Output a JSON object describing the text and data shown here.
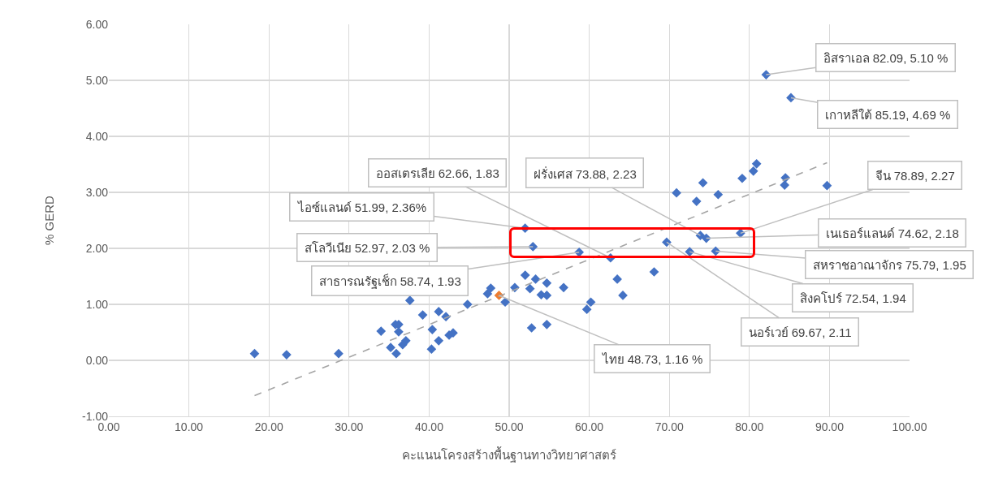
{
  "chart_data": {
    "type": "scatter",
    "xlabel": "คะแนนโครงสร้างพื้นฐานทางวิทยาศาสตร์",
    "ylabel": "% GERD",
    "xlim": [
      0,
      100
    ],
    "ylim": [
      -1,
      6
    ],
    "xticks": [
      {
        "value": 0,
        "label": "0.00"
      },
      {
        "value": 10,
        "label": "10.00"
      },
      {
        "value": 20,
        "label": "20.00"
      },
      {
        "value": 30,
        "label": "30.00"
      },
      {
        "value": 40,
        "label": "40.00"
      },
      {
        "value": 50,
        "label": "50.00"
      },
      {
        "value": 60,
        "label": "60.00"
      },
      {
        "value": 70,
        "label": "70.00"
      },
      {
        "value": 80,
        "label": "80.00"
      },
      {
        "value": 90,
        "label": "90.00"
      },
      {
        "value": 100,
        "label": "100.00"
      }
    ],
    "yticks": [
      {
        "value": -1,
        "label": "-1.00"
      },
      {
        "value": 0,
        "label": "0.00"
      },
      {
        "value": 1,
        "label": "1.00"
      },
      {
        "value": 2,
        "label": "2.00"
      },
      {
        "value": 3,
        "label": "3.00"
      },
      {
        "value": 4,
        "label": "4.00"
      },
      {
        "value": 5,
        "label": "5.00"
      },
      {
        "value": 6,
        "label": "6.00"
      }
    ],
    "grid": true,
    "marker": "diamond",
    "series": [
      {
        "color": "#4472c4",
        "x": [
          18.2,
          22.2,
          28.7,
          34.0,
          35.2,
          35.8,
          35.9,
          36.2,
          36.2,
          36.7,
          37.1,
          37.6,
          39.2,
          40.3,
          40.4,
          41.2,
          41.2,
          42.1,
          42.5,
          43.0,
          44.8,
          47.3,
          47.7,
          49.5,
          50.7,
          51.99,
          52.0,
          52.6,
          52.8,
          52.97,
          53.3,
          54.0,
          54.7,
          54.7,
          54.7,
          56.8,
          58.74,
          59.7,
          60.2,
          62.66,
          63.5,
          64.2,
          68.1,
          69.67,
          70.9,
          72.54,
          73.4,
          73.88,
          74.2,
          74.62,
          75.79,
          76.1,
          78.89,
          79.1,
          80.5,
          80.9,
          82.09,
          84.4,
          84.5,
          85.19,
          89.7
        ],
        "values": [
          0.12,
          0.1,
          0.12,
          0.52,
          0.23,
          0.64,
          0.12,
          0.64,
          0.51,
          0.28,
          0.35,
          1.07,
          0.81,
          0.2,
          0.55,
          0.87,
          0.35,
          0.78,
          0.45,
          0.49,
          1.0,
          1.19,
          1.29,
          1.04,
          1.3,
          2.36,
          1.52,
          1.28,
          0.58,
          2.03,
          1.45,
          1.17,
          1.38,
          0.64,
          1.16,
          1.3,
          1.93,
          0.91,
          1.04,
          1.83,
          1.45,
          1.16,
          1.58,
          2.11,
          2.99,
          1.94,
          2.84,
          2.23,
          3.17,
          2.18,
          1.95,
          2.96,
          2.27,
          3.25,
          3.38,
          3.51,
          5.1,
          3.13,
          3.26,
          4.69,
          3.12
        ]
      },
      {
        "color": "#ed7d31",
        "x": [
          48.73
        ],
        "values": [
          1.16
        ]
      },
      {
        "type": "line",
        "color": "#a5a5a5",
        "line_style": "dashed",
        "marker": "none",
        "x": [
          18.2,
          89.7
        ],
        "values": [
          -0.63,
          3.53
        ]
      }
    ],
    "annotations": [
      {
        "text": "อิสราเอล 82.09, 5.10 %",
        "x": 82.09,
        "y": 5.1
      },
      {
        "text": "เกาหลีใต้ 85.19, 4.69 %",
        "x": 85.19,
        "y": 4.69
      },
      {
        "text": "ออสเตรเลีย 62.66, 1.83",
        "x": 62.66,
        "y": 1.83
      },
      {
        "text": "ฝรั่งเศส 73.88, 2.23",
        "x": 73.88,
        "y": 2.23
      },
      {
        "text": "จีน 78.89, 2.27",
        "x": 78.89,
        "y": 2.27
      },
      {
        "text": "ไอซ์แลนด์ 51.99, 2.36%",
        "x": 51.99,
        "y": 2.36
      },
      {
        "text": "เนเธอร์แลนด์ 74.62, 2.18",
        "x": 74.62,
        "y": 2.18
      },
      {
        "text": "สโลวีเนีย 52.97, 2.03 %",
        "x": 52.97,
        "y": 2.03
      },
      {
        "text": "สหราชอาณาจักร 75.79, 1.95",
        "x": 75.79,
        "y": 1.95
      },
      {
        "text": "สาธารณรัฐเช็ก 58.74, 1.93",
        "x": 58.74,
        "y": 1.93
      },
      {
        "text": "สิงคโปร์ 72.54, 1.94",
        "x": 72.54,
        "y": 1.94
      },
      {
        "text": "นอร์เวย์ 69.67, 2.11",
        "x": 69.67,
        "y": 2.11
      },
      {
        "text": "ไทย 48.73, 1.16 %",
        "x": 48.73,
        "y": 1.16
      }
    ]
  }
}
